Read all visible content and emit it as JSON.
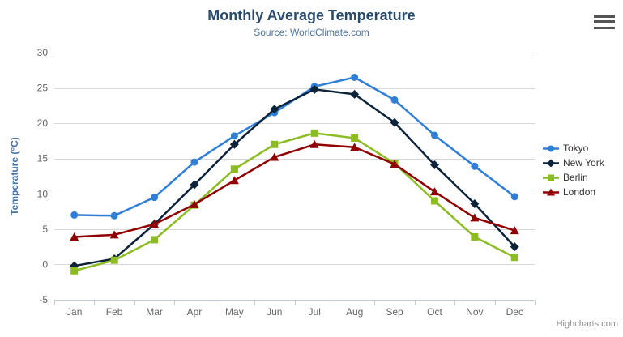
{
  "header": {
    "title": "Monthly Average Temperature",
    "subtitle": "Source: WorldClimate.com"
  },
  "menu": {
    "icon": "hamburger-icon",
    "tooltip": "Chart context menu"
  },
  "credits": {
    "label": "Highcharts.com"
  },
  "colors": {
    "title": "#274b6d",
    "subtitle": "#4d759e",
    "axis_title": "#4572a7",
    "axis_labels": "#666666",
    "gridline": "#d8d8d8",
    "axis_line": "#c0d0e0",
    "legend_text": "#333333"
  },
  "chart_data": {
    "type": "line",
    "title": "Monthly Average Temperature",
    "subtitle": "Source: WorldClimate.com",
    "categories": [
      "Jan",
      "Feb",
      "Mar",
      "Apr",
      "May",
      "Jun",
      "Jul",
      "Aug",
      "Sep",
      "Oct",
      "Nov",
      "Dec"
    ],
    "series": [
      {
        "name": "Tokyo",
        "color": "#2f7ed8",
        "marker": "circle",
        "values": [
          7.0,
          6.9,
          9.5,
          14.5,
          18.2,
          21.5,
          25.2,
          26.5,
          23.3,
          18.3,
          13.9,
          9.6
        ]
      },
      {
        "name": "New York",
        "color": "#0d233a",
        "marker": "diamond",
        "values": [
          -0.2,
          0.8,
          5.7,
          11.3,
          17.0,
          22.0,
          24.8,
          24.1,
          20.1,
          14.1,
          8.6,
          2.5
        ]
      },
      {
        "name": "Berlin",
        "color": "#8bbc21",
        "marker": "square",
        "values": [
          -0.9,
          0.6,
          3.5,
          8.4,
          13.5,
          17.0,
          18.6,
          17.9,
          14.3,
          9.0,
          3.9,
          1.0
        ]
      },
      {
        "name": "London",
        "color": "#910000",
        "marker": "triangle",
        "values": [
          3.9,
          4.2,
          5.7,
          8.5,
          11.9,
          15.2,
          17.0,
          16.6,
          14.2,
          10.3,
          6.6,
          4.8
        ]
      }
    ],
    "xlabel": "",
    "ylabel": "Temperature (°C)",
    "ylim": [
      -5,
      30
    ],
    "ytick_step": 5,
    "grid": true,
    "legend_position": "right"
  }
}
